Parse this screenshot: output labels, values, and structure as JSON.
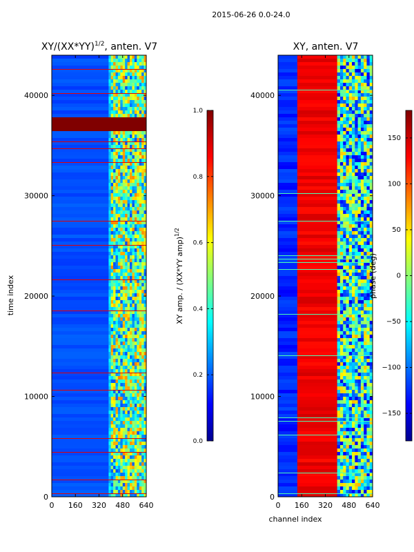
{
  "figure_title": "2015-06-26 0.0-24.0",
  "chart_data": [
    {
      "type": "heatmap",
      "title_prefix": "XY/(XX*YY)",
      "title_exponent": "1/2",
      "title_suffix": ", anten. V7",
      "xlabel": "",
      "ylabel": "time index",
      "x_range": [
        0,
        640
      ],
      "y_range": [
        0,
        44000
      ],
      "x_ticks": [
        0,
        160,
        320,
        480,
        640
      ],
      "y_ticks": [
        0,
        10000,
        20000,
        30000,
        40000
      ],
      "colorbar": {
        "label": "XY amp. / (XX*YY amp)",
        "label_exponent": "1/2",
        "range": [
          0.0,
          1.0
        ],
        "ticks": [
          "0.0",
          "0.2",
          "0.4",
          "0.6",
          "0.8",
          "1.0"
        ],
        "tick_values": [
          0.0,
          0.2,
          0.4,
          0.6,
          0.8,
          1.0
        ]
      },
      "description_bands": {
        "saturated_time_band": [
          36300,
          37900
        ],
        "active_channel_band": [
          400,
          640
        ]
      }
    },
    {
      "type": "heatmap",
      "title": "XY, anten. V7",
      "xlabel": "channel index",
      "ylabel": "",
      "x_range": [
        0,
        640
      ],
      "y_range": [
        0,
        44000
      ],
      "x_ticks": [
        0,
        160,
        320,
        480,
        640
      ],
      "y_ticks": [
        0,
        10000,
        20000,
        30000,
        40000
      ],
      "colorbar": {
        "label": "phase (deg)",
        "range": [
          -180,
          180
        ],
        "ticks": [
          "−150",
          "−100",
          "−50",
          "0",
          "50",
          "100",
          "150"
        ],
        "tick_values": [
          -150,
          -100,
          -50,
          0,
          50,
          100,
          150
        ]
      },
      "description_bands": {
        "low_phase_band": [
          0,
          130
        ],
        "high_phase_band": [
          130,
          400
        ],
        "mixed_band": [
          400,
          640
        ]
      }
    }
  ],
  "colors": {
    "jet_dark_blue": "#00008f",
    "jet_blue": "#0000ff",
    "jet_cyan": "#00ffff",
    "jet_yellow": "#ffff00",
    "jet_red": "#ff0000",
    "jet_dark_red": "#800000"
  }
}
